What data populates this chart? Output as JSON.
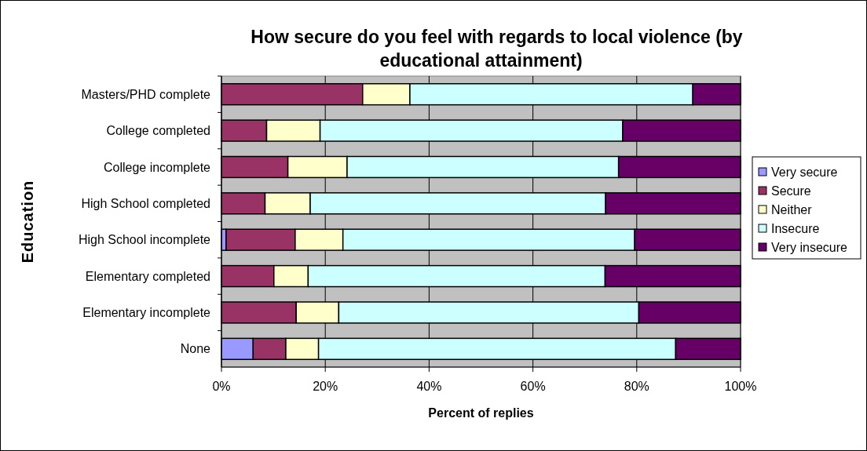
{
  "chart_data": {
    "type": "bar",
    "orientation": "horizontal",
    "stacked": true,
    "title": "How secure do you feel with regards to local violence (by educational attainment)",
    "xlabel": "Percent of replies",
    "ylabel": "Education",
    "categories": [
      "Masters/PHD complete",
      "College completed",
      "College incomplete",
      "High School completed",
      "High School incomplete",
      "Elementary completed",
      "Elementary incomplete",
      "None"
    ],
    "series": [
      {
        "name": "Very secure",
        "color": "#9999ff",
        "values": [
          0,
          null,
          0,
          0,
          0.9,
          0,
          0,
          6.1
        ]
      },
      {
        "name": "Secure",
        "color": "#993366",
        "values": [
          27.2,
          8.7,
          12.8,
          8.4,
          13.3,
          10.1,
          14.4,
          6.3
        ]
      },
      {
        "name": "Neither",
        "color": "#ffffcc",
        "values": [
          9.1,
          10.3,
          11.4,
          8.7,
          9.2,
          6.6,
          8.2,
          6.3
        ]
      },
      {
        "name": "Insecure",
        "color": "#ccffff",
        "values": [
          54.5,
          58.3,
          52.3,
          56.9,
          56.2,
          57.2,
          57.8,
          68.8
        ]
      },
      {
        "name": "Very insecure",
        "color": "#660066",
        "values": [
          9.2,
          22.7,
          23.5,
          26.0,
          20.4,
          26.1,
          19.6,
          12.5
        ]
      }
    ],
    "xlim": [
      0,
      100
    ],
    "xticks": [
      {
        "value": 0,
        "label": "0%"
      },
      {
        "value": 20,
        "label": "20%"
      },
      {
        "value": 40,
        "label": "40%"
      },
      {
        "value": 60,
        "label": "60%"
      },
      {
        "value": 80,
        "label": "80%"
      },
      {
        "value": 100,
        "label": "100%"
      }
    ],
    "grid": "x",
    "legend": "right"
  }
}
